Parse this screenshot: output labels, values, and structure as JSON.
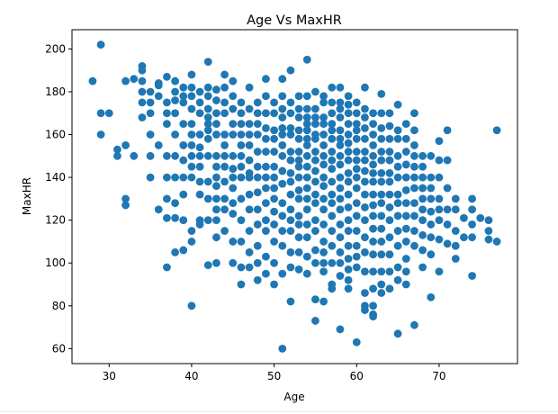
{
  "chart_data": {
    "type": "scatter",
    "title": "Age Vs MaxHR",
    "xlabel": "Age",
    "ylabel": "MaxHR",
    "xlim": [
      25.5,
      79.5
    ],
    "ylim": [
      53,
      209
    ],
    "xticks": [
      30,
      40,
      50,
      60,
      70
    ],
    "yticks": [
      60,
      80,
      100,
      120,
      140,
      160,
      180,
      200
    ],
    "grid": false,
    "legend": "none",
    "marker_color": "#1f77b4",
    "x": [
      28,
      29,
      29,
      29,
      30,
      31,
      31,
      32,
      32,
      32,
      32,
      33,
      33,
      34,
      34,
      34,
      34,
      34,
      34,
      35,
      35,
      35,
      35,
      35,
      35,
      36,
      36,
      36,
      36,
      36,
      37,
      37,
      37,
      37,
      37,
      37,
      37,
      37,
      37,
      38,
      38,
      38,
      38,
      38,
      38,
      38,
      38,
      38,
      38,
      39,
      39,
      39,
      39,
      39,
      39,
      39,
      39,
      39,
      39,
      40,
      40,
      40,
      40,
      40,
      40,
      40,
      40,
      40,
      40,
      40,
      40,
      40,
      41,
      41,
      41,
      41,
      41,
      41,
      41,
      41,
      41,
      41,
      41,
      42,
      42,
      42,
      42,
      42,
      42,
      42,
      42,
      42,
      42,
      42,
      42,
      42,
      43,
      43,
      43,
      43,
      43,
      43,
      43,
      43,
      43,
      43,
      43,
      43,
      43,
      43,
      44,
      44,
      44,
      44,
      44,
      44,
      44,
      44,
      44,
      44,
      44,
      44,
      45,
      45,
      45,
      45,
      45,
      45,
      45,
      45,
      45,
      45,
      45,
      45,
      45,
      46,
      46,
      46,
      46,
      46,
      46,
      46,
      46,
      46,
      46,
      46,
      46,
      46,
      47,
      47,
      47,
      47,
      47,
      47,
      47,
      47,
      47,
      47,
      47,
      47,
      47,
      48,
      48,
      48,
      48,
      48,
      48,
      48,
      48,
      48,
      48,
      48,
      48,
      48,
      49,
      49,
      49,
      49,
      49,
      49,
      49,
      49,
      49,
      49,
      49,
      49,
      49,
      49,
      50,
      50,
      50,
      50,
      50,
      50,
      50,
      50,
      50,
      50,
      50,
      50,
      50,
      50,
      51,
      51,
      51,
      51,
      51,
      51,
      51,
      51,
      51,
      51,
      51,
      51,
      51,
      51,
      51,
      51,
      52,
      52,
      52,
      52,
      52,
      52,
      52,
      52,
      52,
      52,
      52,
      52,
      52,
      52,
      52,
      52,
      53,
      53,
      53,
      53,
      53,
      53,
      53,
      53,
      53,
      53,
      53,
      53,
      53,
      53,
      53,
      53,
      54,
      54,
      54,
      54,
      54,
      54,
      54,
      54,
      54,
      54,
      54,
      54,
      54,
      54,
      54,
      54,
      54,
      54,
      55,
      55,
      55,
      55,
      55,
      55,
      55,
      55,
      55,
      55,
      55,
      55,
      55,
      55,
      55,
      55,
      55,
      55,
      56,
      56,
      56,
      56,
      56,
      56,
      56,
      56,
      56,
      56,
      56,
      56,
      56,
      56,
      56,
      56,
      56,
      56,
      57,
      57,
      57,
      57,
      57,
      57,
      57,
      57,
      57,
      57,
      57,
      57,
      57,
      57,
      57,
      57,
      57,
      57,
      58,
      58,
      58,
      58,
      58,
      58,
      58,
      58,
      58,
      58,
      58,
      58,
      58,
      58,
      58,
      58,
      58,
      58,
      58,
      59,
      59,
      59,
      59,
      59,
      59,
      59,
      59,
      59,
      59,
      59,
      59,
      59,
      59,
      59,
      59,
      59,
      59,
      59,
      60,
      60,
      60,
      60,
      60,
      60,
      60,
      60,
      60,
      60,
      60,
      60,
      60,
      60,
      60,
      60,
      60,
      61,
      61,
      61,
      61,
      61,
      61,
      61,
      61,
      61,
      61,
      61,
      61,
      61,
      61,
      61,
      61,
      61,
      61,
      62,
      62,
      62,
      62,
      62,
      62,
      62,
      62,
      62,
      62,
      62,
      62,
      62,
      62,
      62,
      62,
      62,
      62,
      62,
      63,
      63,
      63,
      63,
      63,
      63,
      63,
      63,
      63,
      63,
      63,
      63,
      63,
      63,
      63,
      63,
      63,
      64,
      64,
      64,
      64,
      64,
      64,
      64,
      64,
      64,
      64,
      64,
      64,
      64,
      64,
      65,
      65,
      65,
      65,
      65,
      65,
      65,
      65,
      65,
      65,
      65,
      65,
      65,
      65,
      66,
      66,
      66,
      66,
      66,
      66,
      66,
      66,
      66,
      66,
      66,
      66,
      66,
      67,
      67,
      67,
      67,
      67,
      67,
      67,
      67,
      67,
      67,
      67,
      67,
      68,
      68,
      68,
      68,
      68,
      68,
      68,
      68,
      68,
      68,
      69,
      69,
      69,
      69,
      69,
      69,
      69,
      69,
      69,
      70,
      70,
      70,
      70,
      70,
      70,
      70,
      70,
      71,
      71,
      71,
      71,
      71,
      71,
      72,
      72,
      72,
      72,
      72,
      73,
      73,
      74,
      74,
      74,
      74,
      74,
      75,
      76,
      76,
      76,
      77,
      77
    ],
    "y": [
      185,
      202,
      170,
      160,
      170,
      153,
      150,
      185,
      130,
      127,
      155,
      186,
      150,
      192,
      190,
      185,
      180,
      175,
      168,
      180,
      175,
      170,
      160,
      150,
      140,
      184,
      183,
      178,
      155,
      125,
      187,
      175,
      170,
      165,
      150,
      140,
      130,
      121,
      98,
      185,
      180,
      176,
      170,
      160,
      150,
      140,
      128,
      121,
      105,
      182,
      178,
      175,
      165,
      155,
      148,
      140,
      132,
      120,
      106,
      188,
      182,
      178,
      172,
      165,
      160,
      155,
      150,
      145,
      140,
      115,
      110,
      80,
      180,
      175,
      170,
      160,
      154,
      150,
      145,
      138,
      132,
      120,
      118,
      194,
      182,
      178,
      172,
      168,
      165,
      162,
      158,
      150,
      138,
      130,
      120,
      99,
      181,
      176,
      170,
      165,
      160,
      150,
      145,
      140,
      136,
      130,
      125,
      120,
      112,
      100,
      188,
      182,
      175,
      170,
      160,
      155,
      150,
      145,
      138,
      130,
      125,
      115,
      185,
      178,
      172,
      165,
      160,
      150,
      144,
      140,
      135,
      128,
      123,
      110,
      100,
      175,
      170,
      165,
      160,
      155,
      150,
      145,
      140,
      130,
      120,
      110,
      98,
      90,
      182,
      172,
      165,
      160,
      155,
      148,
      142,
      140,
      132,
      125,
      115,
      105,
      98,
      175,
      170,
      165,
      160,
      152,
      145,
      140,
      133,
      125,
      118,
      108,
      100,
      92,
      186,
      178,
      170,
      163,
      158,
      152,
      145,
      140,
      135,
      128,
      120,
      115,
      103,
      95,
      175,
      170,
      162,
      158,
      152,
      145,
      140,
      135,
      130,
      124,
      118,
      110,
      100,
      90,
      186,
      178,
      172,
      168,
      163,
      160,
      155,
      150,
      143,
      137,
      128,
      122,
      115,
      108,
      95,
      60,
      190,
      175,
      170,
      163,
      160,
      152,
      148,
      142,
      138,
      132,
      125,
      120,
      115,
      105,
      98,
      82,
      178,
      172,
      168,
      162,
      158,
      152,
      148,
      145,
      140,
      134,
      130,
      122,
      118,
      112,
      105,
      97,
      195,
      178,
      172,
      168,
      165,
      162,
      158,
      155,
      150,
      145,
      140,
      135,
      130,
      125,
      118,
      112,
      103,
      95,
      180,
      172,
      168,
      165,
      160,
      158,
      152,
      148,
      143,
      138,
      132,
      128,
      120,
      115,
      106,
      100,
      83,
      73,
      178,
      175,
      168,
      165,
      160,
      155,
      150,
      146,
      140,
      136,
      130,
      125,
      118,
      110,
      105,
      100,
      96,
      82,
      182,
      175,
      170,
      165,
      162,
      158,
      152,
      148,
      144,
      138,
      132,
      128,
      122,
      115,
      108,
      100,
      90,
      88,
      182,
      175,
      172,
      168,
      162,
      158,
      155,
      150,
      146,
      140,
      135,
      130,
      125,
      118,
      112,
      105,
      100,
      94,
      69,
      178,
      174,
      170,
      165,
      160,
      156,
      152,
      148,
      142,
      138,
      132,
      126,
      120,
      115,
      108,
      102,
      97,
      92,
      88,
      175,
      170,
      165,
      162,
      158,
      152,
      148,
      144,
      140,
      135,
      128,
      122,
      115,
      108,
      103,
      98,
      63,
      182,
      172,
      168,
      163,
      158,
      152,
      148,
      143,
      138,
      132,
      126,
      120,
      112,
      105,
      96,
      86,
      80,
      78,
      170,
      165,
      160,
      155,
      150,
      146,
      142,
      138,
      132,
      127,
      122,
      116,
      110,
      104,
      96,
      88,
      80,
      76,
      75,
      179,
      170,
      163,
      158,
      152,
      148,
      142,
      138,
      132,
      128,
      122,
      116,
      110,
      104,
      96,
      90,
      86,
      170,
      164,
      158,
      152,
      148,
      142,
      138,
      132,
      126,
      120,
      112,
      104,
      96,
      88,
      174,
      162,
      158,
      150,
      145,
      140,
      132,
      128,
      122,
      115,
      108,
      98,
      92,
      67,
      165,
      158,
      152,
      146,
      140,
      134,
      128,
      122,
      116,
      110,
      102,
      96,
      90,
      170,
      162,
      155,
      150,
      145,
      140,
      135,
      128,
      122,
      115,
      108,
      71,
      150,
      145,
      140,
      135,
      130,
      125,
      120,
      113,
      106,
      98,
      150,
      140,
      135,
      130,
      124,
      118,
      112,
      104,
      84,
      157,
      148,
      140,
      130,
      125,
      120,
      111,
      96,
      162,
      148,
      135,
      125,
      118,
      109,
      130,
      125,
      115,
      108,
      102,
      121,
      112,
      130,
      125,
      118,
      112,
      94,
      121,
      120,
      115,
      111,
      162,
      110
    ]
  }
}
